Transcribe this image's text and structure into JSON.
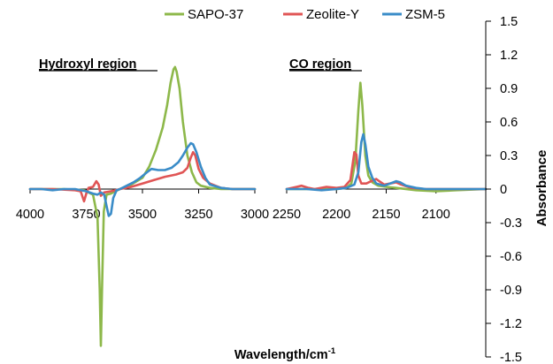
{
  "chart_data": {
    "type": "line",
    "ylabel": "Absorbance",
    "xlabel": "Wavelength/cm",
    "xlabel_superscript": "-1",
    "ylim": [
      -1.5,
      1.5
    ],
    "yticks": [
      1.5,
      1.2,
      0.9,
      0.6,
      0.3,
      0,
      -0.3,
      -0.6,
      -0.9,
      -1.2,
      -1.5
    ],
    "ytick_labels": [
      "1.5",
      "1.2",
      "0.9",
      "0.6",
      "0.3",
      "0",
      "-0.3",
      "-0.6",
      "-0.9",
      "-1.2",
      "-1.5"
    ],
    "legend_position": "top",
    "series": [
      {
        "name": "SAPO-37",
        "color": "#8DB84A"
      },
      {
        "name": "Zeolite-Y",
        "color": "#E05555"
      },
      {
        "name": "ZSM-5",
        "color": "#3A8CC8"
      }
    ],
    "panels": [
      {
        "title": "Hydroxyl region",
        "xlim": [
          4000,
          3000
        ],
        "xticks": [
          4000,
          3750,
          3500,
          3250,
          3000
        ],
        "series": [
          {
            "name": "SAPO-37",
            "points": [
              [
                4000,
                0
              ],
              [
                3850,
                0
              ],
              [
                3760,
                -0.01
              ],
              [
                3720,
                -0.05
              ],
              [
                3700,
                -0.25
              ],
              [
                3690,
                -0.9
              ],
              [
                3685,
                -1.4
              ],
              [
                3680,
                -0.9
              ],
              [
                3672,
                -0.2
              ],
              [
                3660,
                -0.05
              ],
              [
                3640,
                -0.04
              ],
              [
                3620,
                -0.02
              ],
              [
                3600,
                0
              ],
              [
                3550,
                0.04
              ],
              [
                3500,
                0.1
              ],
              [
                3470,
                0.2
              ],
              [
                3440,
                0.35
              ],
              [
                3410,
                0.55
              ],
              [
                3390,
                0.75
              ],
              [
                3375,
                0.95
              ],
              [
                3362,
                1.07
              ],
              [
                3355,
                1.09
              ],
              [
                3348,
                1.05
              ],
              [
                3335,
                0.9
              ],
              [
                3320,
                0.6
              ],
              [
                3300,
                0.3
              ],
              [
                3280,
                0.15
              ],
              [
                3260,
                0.06
              ],
              [
                3240,
                0.03
              ],
              [
                3200,
                0.01
              ],
              [
                3150,
                0
              ],
              [
                3000,
                0
              ]
            ]
          },
          {
            "name": "Zeolite-Y",
            "points": [
              [
                4000,
                0
              ],
              [
                3900,
                0
              ],
              [
                3800,
                -0.01
              ],
              [
                3775,
                -0.02
              ],
              [
                3760,
                -0.11
              ],
              [
                3750,
                -0.04
              ],
              [
                3740,
                0.01
              ],
              [
                3720,
                0.02
              ],
              [
                3705,
                0.07
              ],
              [
                3695,
                0.04
              ],
              [
                3685,
                -0.06
              ],
              [
                3670,
                -0.03
              ],
              [
                3640,
                -0.02
              ],
              [
                3620,
                -0.01
              ],
              [
                3600,
                0
              ],
              [
                3550,
                0.02
              ],
              [
                3500,
                0.05
              ],
              [
                3450,
                0.08
              ],
              [
                3400,
                0.11
              ],
              [
                3350,
                0.13
              ],
              [
                3320,
                0.15
              ],
              [
                3300,
                0.19
              ],
              [
                3285,
                0.28
              ],
              [
                3275,
                0.33
              ],
              [
                3265,
                0.3
              ],
              [
                3250,
                0.18
              ],
              [
                3230,
                0.1
              ],
              [
                3200,
                0.05
              ],
              [
                3150,
                0.01
              ],
              [
                3100,
                0
              ],
              [
                3000,
                0
              ]
            ]
          },
          {
            "name": "ZSM-5",
            "points": [
              [
                4000,
                0
              ],
              [
                3950,
                0
              ],
              [
                3900,
                -0.01
              ],
              [
                3850,
                0
              ],
              [
                3800,
                0
              ],
              [
                3750,
                -0.02
              ],
              [
                3720,
                -0.04
              ],
              [
                3700,
                -0.05
              ],
              [
                3685,
                -0.03
              ],
              [
                3670,
                -0.05
              ],
              [
                3660,
                -0.15
              ],
              [
                3650,
                -0.24
              ],
              [
                3640,
                -0.22
              ],
              [
                3630,
                -0.08
              ],
              [
                3615,
                -0.01
              ],
              [
                3600,
                0
              ],
              [
                3570,
                0.03
              ],
              [
                3540,
                0.06
              ],
              [
                3510,
                0.1
              ],
              [
                3480,
                0.15
              ],
              [
                3460,
                0.18
              ],
              [
                3430,
                0.17
              ],
              [
                3400,
                0.17
              ],
              [
                3370,
                0.19
              ],
              [
                3340,
                0.24
              ],
              [
                3320,
                0.3
              ],
              [
                3300,
                0.37
              ],
              [
                3285,
                0.41
              ],
              [
                3275,
                0.4
              ],
              [
                3260,
                0.33
              ],
              [
                3240,
                0.2
              ],
              [
                3220,
                0.1
              ],
              [
                3200,
                0.04
              ],
              [
                3150,
                0.01
              ],
              [
                3100,
                0
              ],
              [
                3000,
                0
              ]
            ]
          }
        ]
      },
      {
        "title": "CO region",
        "xlim": [
          2250,
          2050
        ],
        "xticks": [
          2250,
          2200,
          2150,
          2100
        ],
        "series": [
          {
            "name": "SAPO-37",
            "points": [
              [
                2250,
                0
              ],
              [
                2200,
                0
              ],
              [
                2190,
                0.01
              ],
              [
                2185,
                0.05
              ],
              [
                2181,
                0.25
              ],
              [
                2178,
                0.7
              ],
              [
                2176,
                0.95
              ],
              [
                2174,
                0.75
              ],
              [
                2171,
                0.3
              ],
              [
                2168,
                0.12
              ],
              [
                2164,
                0.06
              ],
              [
                2158,
                0.03
              ],
              [
                2150,
                0.02
              ],
              [
                2140,
                0.01
              ],
              [
                2120,
                -0.01
              ],
              [
                2100,
                -0.02
              ],
              [
                2080,
                -0.01
              ],
              [
                2050,
                0
              ]
            ]
          },
          {
            "name": "Zeolite-Y",
            "points": [
              [
                2250,
                0
              ],
              [
                2240,
                0.02
              ],
              [
                2235,
                0.03
              ],
              [
                2228,
                0.01
              ],
              [
                2222,
                0
              ],
              [
                2210,
                0.02
              ],
              [
                2200,
                0.01
              ],
              [
                2192,
                0.02
              ],
              [
                2186,
                0.08
              ],
              [
                2182,
                0.33
              ],
              [
                2180,
                0.31
              ],
              [
                2178,
                0.12
              ],
              [
                2175,
                0.05
              ],
              [
                2170,
                0.05
              ],
              [
                2165,
                0.07
              ],
              [
                2160,
                0.09
              ],
              [
                2157,
                0.07
              ],
              [
                2152,
                0.04
              ],
              [
                2146,
                0.05
              ],
              [
                2140,
                0.06
              ],
              [
                2135,
                0.04
              ],
              [
                2125,
                0.01
              ],
              [
                2110,
                0
              ],
              [
                2050,
                0
              ]
            ]
          },
          {
            "name": "ZSM-5",
            "points": [
              [
                2250,
                0
              ],
              [
                2230,
                0
              ],
              [
                2215,
                -0.01
              ],
              [
                2200,
                0
              ],
              [
                2190,
                0.01
              ],
              [
                2182,
                0.04
              ],
              [
                2178,
                0.15
              ],
              [
                2175,
                0.42
              ],
              [
                2173,
                0.49
              ],
              [
                2171,
                0.4
              ],
              [
                2168,
                0.2
              ],
              [
                2164,
                0.1
              ],
              [
                2160,
                0.05
              ],
              [
                2152,
                0.03
              ],
              [
                2146,
                0.05
              ],
              [
                2140,
                0.07
              ],
              [
                2136,
                0.06
              ],
              [
                2130,
                0.03
              ],
              [
                2120,
                0.01
              ],
              [
                2110,
                0
              ],
              [
                2050,
                0
              ]
            ]
          }
        ]
      }
    ]
  }
}
